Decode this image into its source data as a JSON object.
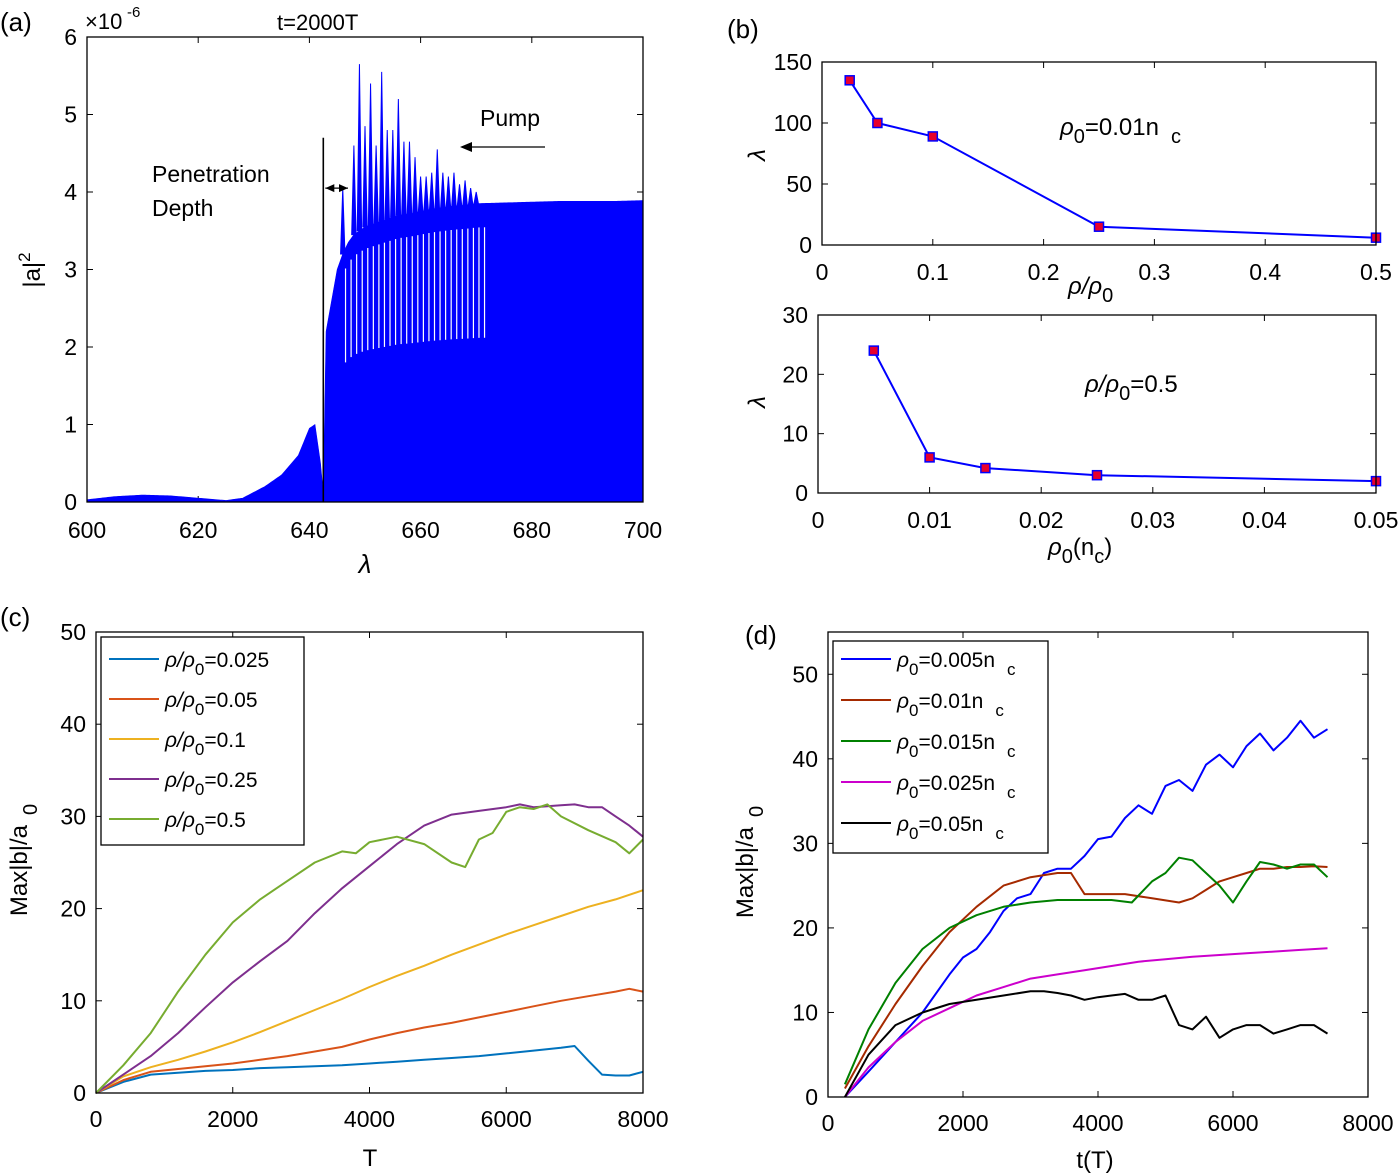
{
  "chart_data": [
    {
      "panel": "a",
      "panel_label": "(a)",
      "type": "area",
      "title": "t=2000T",
      "xlabel": "λ",
      "ylabel": "|a|",
      "ylabel_sup": "2",
      "exponent_label": "×10",
      "exponent_power": "-6",
      "xlim": [
        600,
        700
      ],
      "ylim": [
        0,
        6
      ],
      "xticks": [
        600,
        620,
        640,
        660,
        680,
        700
      ],
      "yticks": [
        0,
        1,
        2,
        3,
        4,
        5,
        6
      ],
      "color": "#0000ff",
      "annotations": {
        "penetration_line1": "Penetration",
        "penetration_line2": "Depth",
        "pump": "Pump",
        "penetration_x": 642.5,
        "penetration_top": 4.7
      },
      "envelope": {
        "x": [
          600,
          605,
          610,
          615,
          620,
          625,
          628,
          632,
          635,
          638,
          640,
          641,
          642,
          642.5,
          643,
          644,
          645,
          646,
          647,
          648,
          650,
          652,
          654,
          656,
          658,
          660,
          662,
          664,
          666,
          668,
          670,
          675,
          680,
          685,
          690,
          695,
          700
        ],
        "y": [
          0.03,
          0.07,
          0.09,
          0.08,
          0.05,
          0.02,
          0.05,
          0.2,
          0.35,
          0.6,
          0.95,
          1.0,
          0.5,
          0.1,
          2.2,
          2.6,
          3.0,
          3.2,
          3.35,
          3.45,
          3.55,
          3.6,
          3.65,
          3.7,
          3.72,
          3.75,
          3.78,
          3.8,
          3.82,
          3.83,
          3.85,
          3.86,
          3.87,
          3.88,
          3.88,
          3.88,
          3.89
        ]
      },
      "spikes": {
        "x": [
          646,
          648,
          649,
          650,
          651,
          652,
          653,
          654,
          655,
          656,
          657,
          658,
          659,
          660,
          661,
          662,
          663,
          664,
          665,
          666,
          667,
          668,
          669,
          670
        ],
        "y": [
          4.05,
          4.6,
          5.65,
          4.85,
          5.4,
          4.6,
          5.55,
          4.8,
          4.8,
          5.2,
          4.65,
          4.65,
          4.45,
          4.2,
          4.2,
          4.25,
          4.55,
          4.25,
          4.2,
          4.25,
          4.1,
          4.15,
          4.05,
          4.0
        ]
      }
    },
    {
      "panel": "b-top",
      "panel_label": "(b)",
      "type": "line",
      "annotation": "ρ",
      "annotation_sub": "0",
      "annotation_rest": "=0.01n",
      "annotation_sub2": "c",
      "xlabel": "ρ/ρ",
      "xlabel_sub": "0",
      "ylabel": "λ",
      "xlim": [
        0,
        0.5
      ],
      "ylim": [
        0,
        150
      ],
      "xticks": [
        0,
        0.1,
        0.2,
        0.3,
        0.4,
        0.5
      ],
      "yticks": [
        0,
        50,
        100,
        150
      ],
      "x": [
        0.025,
        0.05,
        0.1,
        0.25,
        0.5
      ],
      "y": [
        135,
        100,
        89,
        15,
        6
      ],
      "line_color": "#0000ff",
      "marker_color": "#e8002c"
    },
    {
      "panel": "b-bottom",
      "type": "line",
      "annotation": "ρ/ρ",
      "annotation_sub": "0",
      "annotation_rest": "=0.5",
      "xlabel": "ρ",
      "xlabel_sub": "0",
      "xlabel_rest": "(n",
      "xlabel_sub2": "c",
      "xlabel_end": ")",
      "ylabel": "λ",
      "xlim": [
        0,
        0.05
      ],
      "ylim": [
        0,
        30
      ],
      "xticks": [
        0,
        0.01,
        0.02,
        0.03,
        0.04,
        0.05
      ],
      "yticks": [
        0,
        10,
        20,
        30
      ],
      "x": [
        0.005,
        0.01,
        0.015,
        0.025,
        0.05
      ],
      "y": [
        24,
        6,
        4.2,
        3,
        2
      ],
      "line_color": "#0000ff",
      "marker_color": "#e8002c"
    },
    {
      "panel": "c",
      "panel_label": "(c)",
      "type": "line",
      "xlabel": "T",
      "ylabel": "Max|b|/a",
      "ylabel_sub": "0",
      "xlim": [
        0,
        8000
      ],
      "ylim": [
        0,
        50
      ],
      "xticks": [
        0,
        2000,
        4000,
        6000,
        8000
      ],
      "yticks": [
        0,
        10,
        20,
        30,
        40,
        50
      ],
      "series": [
        {
          "name_main": "ρ/ρ",
          "name_sub": "0",
          "name_rest": "=0.025",
          "color": "#0072bd",
          "x": [
            0,
            400,
            800,
            1200,
            1600,
            2000,
            2400,
            2800,
            3200,
            3600,
            4000,
            4400,
            4800,
            5200,
            5600,
            6000,
            6400,
            6800,
            7000,
            7200,
            7400,
            7600,
            7800,
            8000
          ],
          "y": [
            0,
            1.2,
            2.0,
            2.2,
            2.4,
            2.5,
            2.7,
            2.8,
            2.9,
            3.0,
            3.2,
            3.4,
            3.6,
            3.8,
            4.0,
            4.3,
            4.6,
            4.9,
            5.1,
            3.5,
            2.0,
            1.9,
            1.9,
            2.3
          ]
        },
        {
          "name_main": "ρ/ρ",
          "name_sub": "0",
          "name_rest": "=0.05",
          "color": "#d95319",
          "x": [
            0,
            400,
            800,
            1200,
            1600,
            2000,
            2400,
            2800,
            3200,
            3600,
            4000,
            4400,
            4800,
            5200,
            5600,
            6000,
            6400,
            6800,
            7200,
            7600,
            7800,
            8000
          ],
          "y": [
            0,
            1.4,
            2.3,
            2.6,
            2.9,
            3.2,
            3.6,
            4.0,
            4.5,
            5.0,
            5.8,
            6.5,
            7.1,
            7.6,
            8.2,
            8.8,
            9.4,
            10.0,
            10.5,
            11.0,
            11.3,
            11.0
          ]
        },
        {
          "name_main": "ρ/ρ",
          "name_sub": "0",
          "name_rest": "=0.1",
          "color": "#edb120",
          "x": [
            0,
            400,
            800,
            1200,
            1600,
            2000,
            2400,
            2800,
            3200,
            3600,
            4000,
            4400,
            4800,
            5200,
            5600,
            6000,
            6400,
            6800,
            7200,
            7600,
            8000
          ],
          "y": [
            0,
            1.8,
            2.8,
            3.6,
            4.5,
            5.5,
            6.6,
            7.8,
            9.0,
            10.2,
            11.5,
            12.7,
            13.8,
            15.0,
            16.1,
            17.2,
            18.2,
            19.2,
            20.2,
            21.0,
            22.0
          ]
        },
        {
          "name_main": "ρ/ρ",
          "name_sub": "0",
          "name_rest": "=0.25",
          "color": "#7e2f8e",
          "x": [
            0,
            400,
            800,
            1200,
            1600,
            2000,
            2400,
            2800,
            3200,
            3600,
            4000,
            4400,
            4800,
            5200,
            5600,
            6000,
            6200,
            6400,
            6800,
            7000,
            7200,
            7400,
            7600,
            7800,
            8000
          ],
          "y": [
            0,
            2.0,
            4.0,
            6.5,
            9.3,
            12.0,
            14.3,
            16.5,
            19.5,
            22.2,
            24.6,
            27.0,
            29.0,
            30.2,
            30.6,
            31.0,
            31.3,
            31.0,
            31.2,
            31.3,
            31.0,
            31.0,
            30.0,
            29.0,
            27.8
          ]
        },
        {
          "name_main": "ρ/ρ",
          "name_sub": "0",
          "name_rest": "=0.5",
          "color": "#77ac30",
          "x": [
            0,
            400,
            800,
            1200,
            1600,
            2000,
            2400,
            2800,
            3200,
            3600,
            3800,
            4000,
            4400,
            4800,
            5200,
            5400,
            5600,
            5800,
            6000,
            6200,
            6400,
            6600,
            6800,
            7200,
            7600,
            7800,
            8000
          ],
          "y": [
            0,
            3.0,
            6.5,
            11.0,
            15.0,
            18.5,
            21.0,
            23.0,
            25.0,
            26.2,
            26.0,
            27.2,
            27.8,
            27.0,
            25.0,
            24.5,
            27.5,
            28.2,
            30.5,
            31.0,
            30.8,
            31.3,
            30.0,
            28.5,
            27.2,
            26.0,
            27.5
          ]
        }
      ]
    },
    {
      "panel": "d",
      "panel_label": "(d)",
      "type": "line",
      "xlabel": "t(T)",
      "ylabel": "Max|b|/a",
      "ylabel_sub": "0",
      "xlim": [
        0,
        8000
      ],
      "ylim": [
        0,
        55
      ],
      "xticks": [
        0,
        2000,
        4000,
        6000,
        8000
      ],
      "yticks": [
        0,
        10,
        20,
        30,
        40,
        50
      ],
      "series": [
        {
          "name_main": "ρ",
          "name_sub": "0",
          "name_rest": "=0.005n",
          "name_sub2": "c",
          "color": "#0000ff",
          "x": [
            250,
            600,
            1000,
            1400,
            1800,
            2000,
            2200,
            2400,
            2600,
            2800,
            3000,
            3200,
            3400,
            3600,
            3800,
            4000,
            4200,
            4400,
            4600,
            4800,
            5000,
            5200,
            5400,
            5600,
            5800,
            6000,
            6200,
            6400,
            6600,
            6800,
            7000,
            7200,
            7400
          ],
          "y": [
            0,
            3,
            6.5,
            10,
            14.5,
            16.5,
            17.5,
            19.5,
            22,
            23.5,
            24,
            26.5,
            27,
            27,
            28.5,
            30.5,
            30.8,
            33,
            34.5,
            33.5,
            36.8,
            37.5,
            36.2,
            39.3,
            40.5,
            39,
            41.5,
            43,
            41,
            42.5,
            44.5,
            42.5,
            43.5
          ]
        },
        {
          "name_main": "ρ",
          "name_sub": "0",
          "name_rest": "=0.01n",
          "name_sub2": "c",
          "color": "#a52a00",
          "x": [
            250,
            600,
            1000,
            1400,
            1800,
            2200,
            2600,
            3000,
            3400,
            3600,
            3800,
            4000,
            4400,
            4800,
            5200,
            5400,
            5600,
            5800,
            6000,
            6200,
            6400,
            6600,
            6800,
            7000,
            7200,
            7400
          ],
          "y": [
            1,
            6,
            11,
            15.5,
            19.5,
            22.5,
            25,
            26,
            26.5,
            26.5,
            24,
            24,
            24,
            23.5,
            23,
            23.5,
            24.5,
            25.5,
            26,
            26.5,
            27,
            27,
            27.2,
            27.2,
            27.3,
            27.2
          ]
        },
        {
          "name_main": "ρ",
          "name_sub": "0",
          "name_rest": "=0.015n",
          "name_sub2": "c",
          "color": "#008000",
          "x": [
            250,
            600,
            1000,
            1400,
            1800,
            2200,
            2600,
            3000,
            3400,
            3800,
            4200,
            4500,
            4800,
            5000,
            5200,
            5400,
            5600,
            5800,
            6000,
            6200,
            6400,
            6600,
            6800,
            7000,
            7200,
            7400
          ],
          "y": [
            1.5,
            8,
            13.5,
            17.5,
            20,
            21.5,
            22.5,
            23,
            23.3,
            23.3,
            23.3,
            23,
            25.5,
            26.5,
            28.3,
            28,
            26.5,
            25,
            23,
            25.5,
            27.8,
            27.5,
            27,
            27.5,
            27.5,
            26
          ]
        },
        {
          "name_main": "ρ",
          "name_sub": "0",
          "name_rest": "=0.025n",
          "name_sub2": "c",
          "color": "#cc00cc",
          "x": [
            250,
            600,
            1000,
            1400,
            1800,
            2200,
            2600,
            3000,
            3400,
            3800,
            4200,
            4600,
            5000,
            5400,
            5800,
            6200,
            6600,
            7000,
            7400
          ],
          "y": [
            0,
            3.5,
            6.5,
            9,
            10.5,
            12,
            13,
            14,
            14.5,
            15,
            15.5,
            16,
            16.3,
            16.6,
            16.8,
            17,
            17.2,
            17.4,
            17.6
          ]
        },
        {
          "name_main": "ρ",
          "name_sub": "0",
          "name_rest": "=0.05n",
          "name_sub2": "c",
          "color": "#000000",
          "x": [
            250,
            600,
            1000,
            1400,
            1800,
            2200,
            2600,
            3000,
            3200,
            3400,
            3600,
            3800,
            4000,
            4200,
            4400,
            4600,
            4800,
            5000,
            5200,
            5400,
            5600,
            5800,
            6000,
            6200,
            6400,
            6600,
            6800,
            7000,
            7200,
            7400
          ],
          "y": [
            0,
            5,
            8.5,
            10,
            11,
            11.5,
            12,
            12.5,
            12.5,
            12.3,
            12,
            11.5,
            11.8,
            12,
            12.2,
            11.5,
            11.5,
            12,
            8.5,
            8,
            9.5,
            7,
            8,
            8.5,
            8.5,
            7.5,
            8,
            8.5,
            8.5,
            7.5
          ]
        }
      ]
    }
  ]
}
